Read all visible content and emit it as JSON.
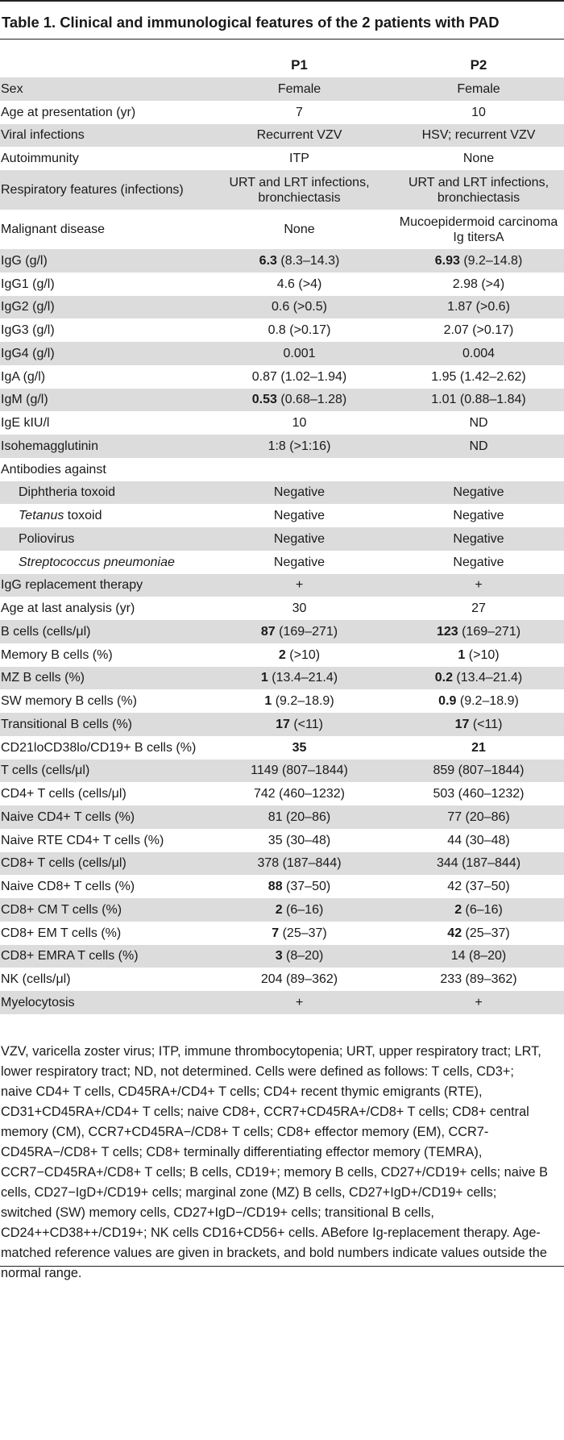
{
  "title": "Table 1. Clinical and immunological features of the 2 patients with PAD",
  "headers": {
    "label": "",
    "p1": "P1",
    "p2": "P2"
  },
  "rows": [
    {
      "label": "Sex",
      "p1": "Female",
      "p2": "Female"
    },
    {
      "label": "Age at presentation (yr)",
      "p1": "7",
      "p2": "10"
    },
    {
      "label": "Viral infections",
      "p1": "Recurrent VZV",
      "p2": "HSV; recurrent VZV"
    },
    {
      "label": "Autoimmunity",
      "p1": "ITP",
      "p2": "None"
    },
    {
      "label": "Respiratory features (infections)",
      "p1": "URT and LRT infections, bronchiectasis",
      "p2": "URT and LRT infections, bronchiectasis"
    },
    {
      "label": "Malignant disease",
      "p1": "None",
      "p2": "Mucoepidermoid carcinoma Ig titersA"
    },
    {
      "label": "IgG (g/l)",
      "p1_bold": "6.3",
      "p1": "(8.3–14.3)",
      "p2_bold": "6.93",
      "p2": "(9.2–14.8)"
    },
    {
      "label": "IgG1 (g/l)",
      "p1": "4.6 (>4)",
      "p2": "2.98 (>4)"
    },
    {
      "label": "IgG2 (g/l)",
      "p1": "0.6 (>0.5)",
      "p2": "1.87 (>0.6)"
    },
    {
      "label": "IgG3 (g/l)",
      "p1": "0.8 (>0.17)",
      "p2": "2.07 (>0.17)"
    },
    {
      "label": "IgG4 (g/l)",
      "p1": "0.001",
      "p2": "0.004"
    },
    {
      "label": "IgA (g/l)",
      "p1": "0.87 (1.02–1.94)",
      "p2": "1.95 (1.42–2.62)"
    },
    {
      "label": "IgM (g/l)",
      "p1_bold": "0.53",
      "p1": "(0.68–1.28)",
      "p2": "1.01 (0.88–1.84)"
    },
    {
      "label": "IgE kIU/l",
      "p1": "10",
      "p2": "ND"
    },
    {
      "label": "Isohemagglutinin",
      "p1": "1:8 (>1:16)",
      "p2": "ND"
    },
    {
      "label": "Antibodies against",
      "p1": "",
      "p2": ""
    },
    {
      "label": "Diphtheria toxoid",
      "p1": "Negative",
      "p2": "Negative"
    },
    {
      "label_italic": "Tetanus",
      "label": "toxoid",
      "p1": "Negative",
      "p2": "Negative"
    },
    {
      "label": "Poliovirus",
      "p1": "Negative",
      "p2": "Negative"
    },
    {
      "label_italic": "Streptococcus pneumoniae",
      "p1": "Negative",
      "p2": "Negative"
    },
    {
      "label": "IgG replacement therapy",
      "p1": "+",
      "p2": "+"
    },
    {
      "label": "Age at last analysis (yr)",
      "p1": "30",
      "p2": "27"
    },
    {
      "label": "B cells (cells/μl)",
      "p1_bold": "87",
      "p1": "(169–271)",
      "p2_bold": "123",
      "p2": "(169–271)"
    },
    {
      "label": "Memory B cells (%)",
      "p1_bold": "2",
      "p1": "(>10)",
      "p2_bold": "1",
      "p2": "(>10)"
    },
    {
      "label": "MZ B cells (%)",
      "p1_bold": "1",
      "p1": "(13.4–21.4)",
      "p2_bold": "0.2",
      "p2": "(13.4–21.4)"
    },
    {
      "label": "SW memory B cells (%)",
      "p1_bold": "1",
      "p1": "(9.2–18.9)",
      "p2_bold": "0.9",
      "p2": "(9.2–18.9)"
    },
    {
      "label": "Transitional B cells (%)",
      "p1_bold": "17",
      "p1": "(<11)",
      "p2_bold": "17",
      "p2": "(<11)"
    },
    {
      "label": "CD21loCD38lo/CD19+ B cells (%)",
      "p1_bold": "35",
      "p1": "",
      "p2_bold": "21",
      "p2": ""
    },
    {
      "label": "T cells (cells/μl)",
      "p1": "1149 (807–1844)",
      "p2": "859 (807–1844)"
    },
    {
      "label": "CD4+ T cells (cells/μl)",
      "p1": "742 (460–1232)",
      "p2": "503 (460–1232)"
    },
    {
      "label": "Naive CD4+ T cells (%)",
      "p1": "81 (20–86)",
      "p2": "77 (20–86)"
    },
    {
      "label": "Naive RTE CD4+ T cells (%)",
      "p1": "35 (30–48)",
      "p2": "44 (30–48)"
    },
    {
      "label": "CD8+ T cells (cells/μl)",
      "p1": "378 (187–844)",
      "p2": "344 (187–844)"
    },
    {
      "label": "Naive CD8+ T cells (%)",
      "p1_bold": "88",
      "p1": "(37–50)",
      "p2": "42 (37–50)"
    },
    {
      "label": "CD8+ CM T cells (%)",
      "p1_bold": "2",
      "p1": "(6–16)",
      "p2_bold": "2",
      "p2": "(6–16)"
    },
    {
      "label": "CD8+ EM T cells (%)",
      "p1_bold": "7",
      "p1": "(25–37)",
      "p2_bold": "42",
      "p2": "(25–37)"
    },
    {
      "label": "CD8+ EMRA T cells (%)",
      "p1_bold": "3",
      "p1": "(8–20)",
      "p2": "14 (8–20)"
    },
    {
      "label": "NK (cells/μl)",
      "p1": "204 (89–362)",
      "p2": "233 (89–362)"
    },
    {
      "label": "Myelocytosis",
      "p1": "+",
      "p2": "+"
    }
  ],
  "footnote": "VZV, varicella zoster virus; ITP, immune thrombocytopenia; URT, upper respiratory tract; LRT, lower respiratory tract; ND, not determined. Cells were defined as follows: T cells, CD3+; naive CD4+ T cells, CD45RA+/CD4+ T cells; CD4+ recent thymic emigrants (RTE), CD31+CD45RA+/CD4+ T cells; naive CD8+, CCR7+CD45RA+/CD8+ T cells; CD8+ central memory (CM), CCR7+CD45RA−/CD8+ T cells; CD8+ effector memory (EM), CCR7-CD45RA−/CD8+ T cells; CD8+ terminally differentiating effector memory (TEMRA), CCR7−CD45RA+/CD8+ T cells; B cells, CD19+; memory B cells, CD27+/CD19+ cells; naive B cells, CD27−IgD+/CD19+ cells; marginal zone (MZ) B cells, CD27+IgD+/CD19+ cells; switched (SW) memory cells, CD27+IgD−/CD19+ cells; transitional B cells, CD24++CD38++/CD19+; NK cells CD16+CD56+ cells. ABefore Ig-replacement therapy. Age-matched reference values are given in brackets, and bold numbers indicate values outside the normal range."
}
